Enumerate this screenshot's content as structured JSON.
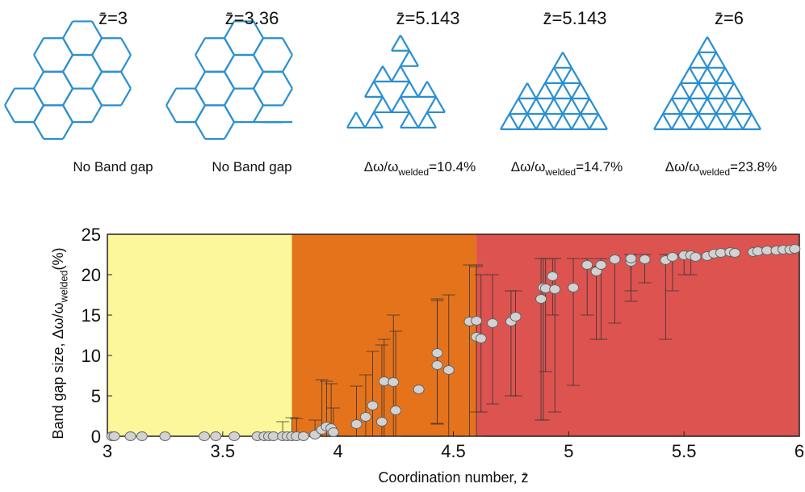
{
  "lattices": [
    {
      "label": "z̄=3",
      "caption": {
        "text": "No Band gap"
      }
    },
    {
      "label": "z̄=3.36",
      "caption": {
        "text": "No Band gap"
      }
    },
    {
      "label": "z̄=5.143",
      "caption": {
        "text": "Δω/ω",
        "sub": "welded",
        "suffix": "=10.4%"
      }
    },
    {
      "label": "z̄=5.143",
      "caption": {
        "text": "Δω/ω",
        "sub": "welded",
        "suffix": "=14.7%"
      }
    },
    {
      "label": "z̄=6",
      "caption": {
        "text": "Δω/ω",
        "sub": "welded",
        "suffix": "=23.8%"
      }
    }
  ],
  "chart_data": {
    "type": "scatter",
    "x_label": {
      "text": "Coordination number, z̄"
    },
    "y_label": {
      "text": "Band gap size, Δω/ω",
      "sub": "welded",
      "suffix": "(%)"
    },
    "xlim": [
      3,
      6
    ],
    "xticks": [
      3,
      3.5,
      4,
      4.5,
      5,
      5.5,
      6
    ],
    "ylim": [
      0,
      25
    ],
    "yticks": [
      0,
      5,
      10,
      15,
      20,
      25
    ],
    "regions": [
      {
        "from": 3,
        "to": 3.8,
        "color": "#fdf79b"
      },
      {
        "from": 3.8,
        "to": 4.6,
        "color": "#e5731b"
      },
      {
        "from": 4.6,
        "to": 6,
        "color": "#dc5350"
      }
    ],
    "series": [
      {
        "color": "#d2d2d2",
        "x": [
          3.02,
          3.03,
          3.1,
          3.15,
          3.25,
          3.42,
          3.47,
          3.55,
          3.65,
          3.68,
          3.7,
          3.72,
          3.76,
          3.78,
          3.8,
          3.82,
          3.85,
          3.9,
          3.93,
          3.95,
          3.97,
          3.98,
          4.08,
          4.12,
          4.15,
          4.19,
          4.2,
          4.24,
          4.25,
          4.35,
          4.43,
          4.43,
          4.48,
          4.57,
          4.6,
          4.6,
          4.62,
          4.67,
          4.75,
          4.77,
          4.88,
          4.89,
          4.9,
          4.93,
          4.94,
          5.02,
          5.08,
          5.12,
          5.14,
          5.2,
          5.27,
          5.27,
          5.33,
          5.42,
          5.45,
          5.5,
          5.53,
          5.55,
          5.6,
          5.63,
          5.66,
          5.7,
          5.72,
          5.8,
          5.82,
          5.86,
          5.9,
          5.93,
          5.96,
          5.98
        ],
        "values": [
          0,
          0,
          0,
          0,
          0,
          0,
          0,
          0,
          0,
          0,
          0,
          0,
          0,
          0,
          0,
          0,
          0,
          0.2,
          0.8,
          1.2,
          1,
          0.5,
          1.5,
          2.4,
          3.8,
          1.8,
          6.8,
          6.7,
          3.2,
          5.8,
          10.3,
          8.8,
          8.2,
          14.2,
          14.3,
          12.3,
          12.1,
          14,
          14.2,
          14.8,
          17,
          18.4,
          18.3,
          19.8,
          18.2,
          18.4,
          21.2,
          20.4,
          21.2,
          21.9,
          21.6,
          22,
          21.9,
          21.8,
          22.2,
          22.4,
          22.4,
          22.2,
          22.3,
          22.6,
          22.7,
          22.8,
          22.7,
          22.8,
          22.9,
          23,
          23,
          23.1,
          23.1,
          23.2
        ],
        "ymin": [
          null,
          null,
          null,
          null,
          null,
          null,
          null,
          null,
          null,
          null,
          null,
          null,
          0,
          null,
          0,
          0,
          null,
          0,
          0,
          0,
          0,
          0,
          0,
          0,
          0,
          0,
          0,
          0,
          0,
          null,
          1.6,
          1.5,
          0,
          0,
          0,
          3,
          3,
          4,
          5,
          5,
          2,
          2,
          8,
          15,
          3,
          6.3,
          15,
          12,
          12,
          14,
          16.7,
          18,
          19,
          12,
          18,
          20,
          20,
          null,
          null,
          null,
          null,
          null,
          null,
          null,
          null,
          null,
          null,
          null,
          null,
          null
        ],
        "ymax": [
          null,
          null,
          null,
          null,
          null,
          null,
          null,
          null,
          null,
          null,
          null,
          null,
          1.8,
          null,
          2.3,
          2.2,
          null,
          2,
          7,
          6.8,
          6.5,
          3.5,
          6.2,
          7.6,
          10.5,
          11.3,
          12,
          15,
          13,
          null,
          17,
          16.8,
          17.5,
          21.2,
          21.2,
          21,
          20,
          20,
          18,
          18,
          22,
          22,
          22,
          22,
          22,
          22,
          22,
          21,
          22,
          22,
          22.5,
          22.5,
          22.5,
          22.5,
          22.5,
          22.5,
          22.5,
          null,
          null,
          null,
          null,
          null,
          null,
          null,
          null,
          null,
          null,
          null,
          null,
          null
        ]
      }
    ]
  }
}
